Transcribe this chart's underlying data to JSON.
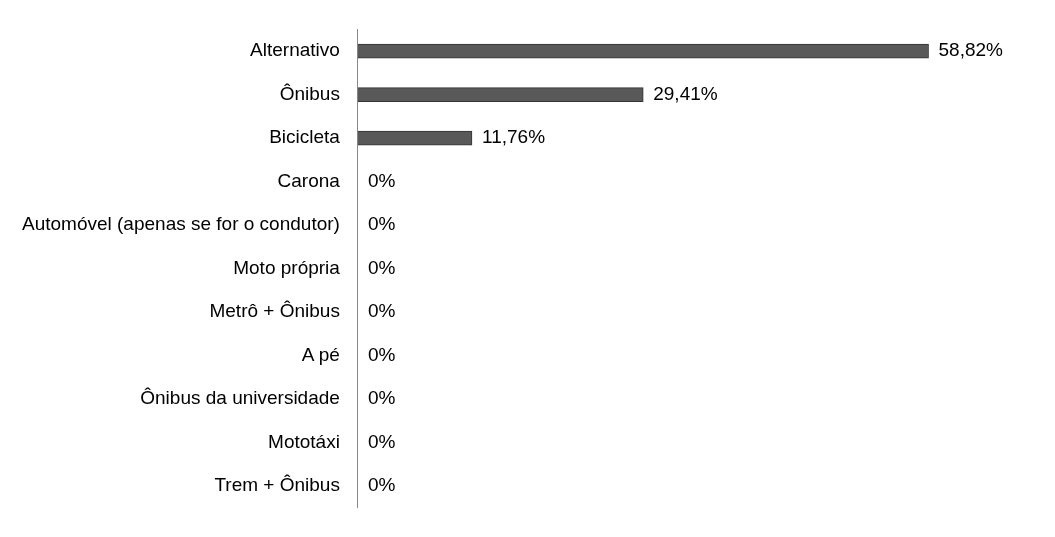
{
  "chart_data": {
    "type": "bar",
    "orientation": "horizontal",
    "categories": [
      "Alternativo",
      "Ônibus",
      "Bicicleta",
      "Carona",
      "Automóvel (apenas se for o condutor)",
      "Moto própria",
      "Metrô + Ônibus",
      "A pé",
      "Ônibus da universidade",
      "Mototáxi",
      "Trem + Ônibus"
    ],
    "values": [
      58.82,
      29.41,
      11.76,
      0,
      0,
      0,
      0,
      0,
      0,
      0,
      0
    ],
    "value_labels": [
      "58,82%",
      "29,41%",
      "11,76%",
      "0%",
      "0%",
      "0%",
      "0%",
      "0%",
      "0%",
      "0%",
      "0%"
    ],
    "color": "#595959"
  }
}
